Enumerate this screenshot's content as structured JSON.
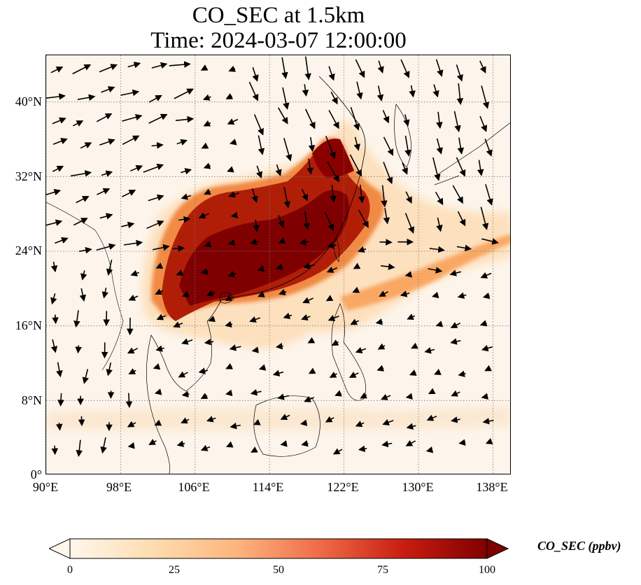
{
  "title": {
    "line1": "CO_SEC at 1.5km",
    "line2": "Time: 2024-03-07 12:00:00"
  },
  "map": {
    "projection": "PlateCarree",
    "lon_range": [
      90,
      140
    ],
    "lat_range": [
      0,
      45
    ],
    "lat_ticks": [
      {
        "value": 0,
        "label": "0°"
      },
      {
        "value": 8,
        "label": "8°N"
      },
      {
        "value": 16,
        "label": "16°N"
      },
      {
        "value": 24,
        "label": "24°N"
      },
      {
        "value": 32,
        "label": "32°N"
      },
      {
        "value": 40,
        "label": "40°N"
      }
    ],
    "lon_ticks": [
      {
        "value": 90,
        "label": "90°E"
      },
      {
        "value": 98,
        "label": "98°E"
      },
      {
        "value": 106,
        "label": "106°E"
      },
      {
        "value": 114,
        "label": "114°E"
      },
      {
        "value": 122,
        "label": "122°E"
      },
      {
        "value": 130,
        "label": "130°E"
      },
      {
        "value": 138,
        "label": "138°E"
      }
    ],
    "gridlines": "dotted",
    "background_color": "#fdf5eb",
    "plume_colors": [
      "#fde4c4",
      "#fdb77a",
      "#f3772e",
      "#d2330a",
      "#8f0000",
      "#7f0000"
    ],
    "wind_vectors": "black arrows"
  },
  "colorbar": {
    "label": "CO_SEC (ppbv)",
    "min": 0,
    "max": 100,
    "ticks": [
      "0",
      "25",
      "50",
      "75",
      "100"
    ],
    "colormap": "OrRd",
    "extend": "both"
  }
}
